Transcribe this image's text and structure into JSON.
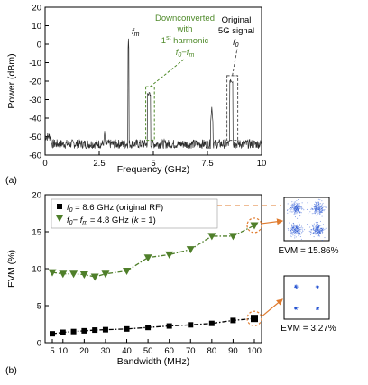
{
  "colors": {
    "spectrum": "#2b2b2b",
    "rf_series": "#000000",
    "if_series": "#4f7f2a",
    "annotation_green": "#4f8a2a",
    "highlight_orange": "#e07b2e",
    "constellation_dot": "#1f4fd1"
  },
  "chart_data": [
    {
      "type": "line",
      "panel_label": "(a)",
      "xlabel": "Frequency (GHz)",
      "ylabel": "Power (dBm)",
      "xlim": [
        0,
        10
      ],
      "ylim": [
        -60,
        20
      ],
      "x_ticks": [
        "0",
        "2.5",
        "5",
        "7.5",
        "10"
      ],
      "y_ticks": [
        "20",
        "10",
        "0",
        "-10",
        "-20",
        "-30",
        "-40",
        "-50",
        "-60"
      ],
      "noise_floor_dbm": -54,
      "peaks": [
        {
          "label": "f_m",
          "freq_ghz": 3.85,
          "power_dbm": 3
        },
        {
          "label": "f_0 - f_m",
          "freq_ghz": 4.8,
          "power_dbm": -27
        },
        {
          "label": "spur",
          "freq_ghz": 2.75,
          "power_dbm": -47
        },
        {
          "label": "spur",
          "freq_ghz": 7.7,
          "power_dbm": -34
        },
        {
          "label": "f_0",
          "freq_ghz": 8.6,
          "power_dbm": -20
        }
      ],
      "annotations": {
        "fm": "f",
        "fm_sub": "m",
        "downconverted_lines": [
          "Downconverted",
          "with"
        ],
        "harmonic_prefix": "1",
        "harmonic_sup": "st",
        "harmonic_suffix": " harmonic",
        "diff_label_f": "f",
        "diff_label_sub0": "0",
        "diff_label_minus": "−f",
        "diff_label_subm": "m",
        "original_lines": [
          "Original",
          "5G signal"
        ],
        "f0": "f",
        "f0_sub": "0"
      }
    },
    {
      "type": "line",
      "panel_label": "(b)",
      "xlabel": "Bandwidth (MHz)",
      "ylabel": "EVM (%)",
      "xlim": [
        5,
        100
      ],
      "ylim": [
        0,
        20
      ],
      "x_ticks": [
        "5",
        "10",
        "20",
        "30",
        "40",
        "50",
        "60",
        "70",
        "80",
        "90",
        "100"
      ],
      "y_ticks": [
        "0",
        "5",
        "10",
        "15",
        "20"
      ],
      "x": [
        5,
        10,
        15,
        20,
        25,
        30,
        40,
        50,
        60,
        70,
        80,
        90,
        100
      ],
      "series": [
        {
          "name_f": "f",
          "name_sub": "0",
          "name_rest": " = 8.6 GHz (original RF)",
          "marker": "square",
          "values": [
            1.2,
            1.4,
            1.5,
            1.6,
            1.7,
            1.75,
            1.85,
            2.05,
            2.25,
            2.4,
            2.6,
            3.0,
            3.27
          ]
        },
        {
          "name_f": "f",
          "name_sub": "0",
          "name_mid": "− f",
          "name_sub2": "m",
          "name_rest": " = 4.8 GHz (",
          "name_k": "k",
          "name_end": " = 1)",
          "marker": "triangle-down",
          "values": [
            9.5,
            9.3,
            9.3,
            9.2,
            8.9,
            9.3,
            9.7,
            11.5,
            11.9,
            12.6,
            14.4,
            14.4,
            15.86
          ]
        }
      ],
      "evm_annotations": [
        "EVM = 15.86%",
        "EVM = 3.27%"
      ],
      "limit_line_evm": 18.5
    }
  ]
}
